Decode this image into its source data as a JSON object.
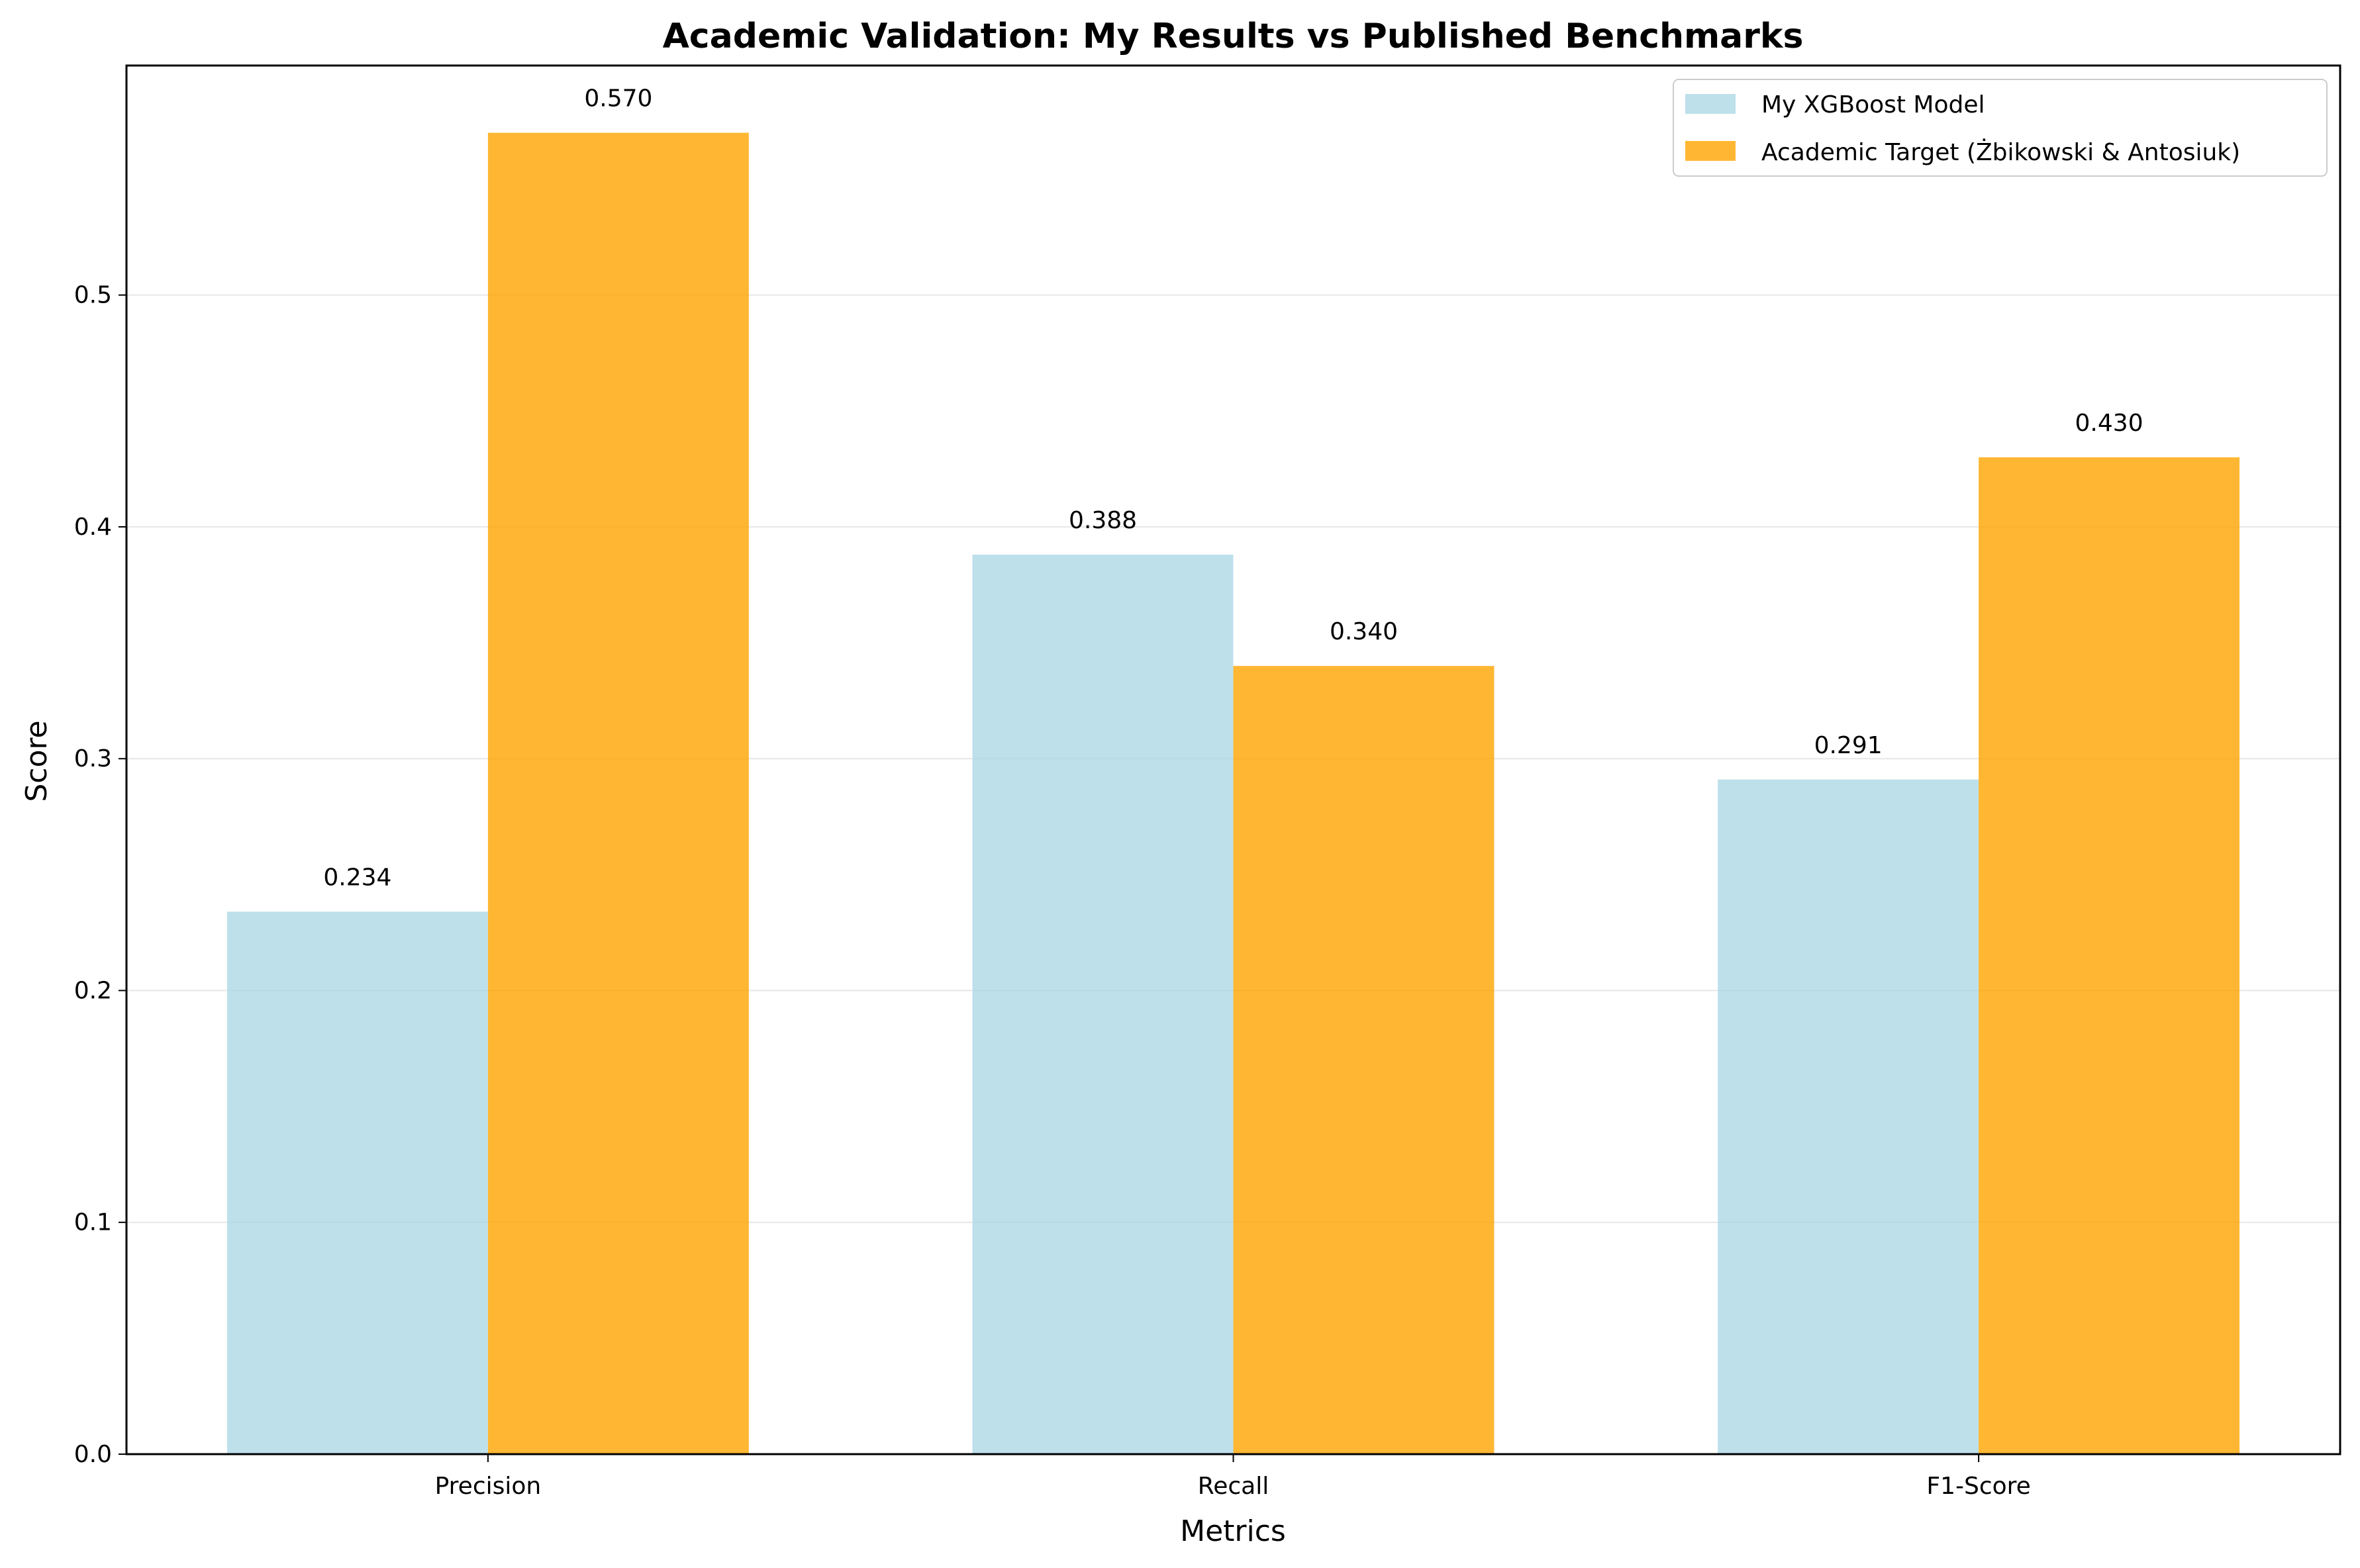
{
  "chart_data": {
    "type": "bar",
    "title": "Academic Validation: My Results vs Published Benchmarks",
    "xlabel": "Metrics",
    "ylabel": "Score",
    "categories": [
      "Precision",
      "Recall",
      "F1-Score"
    ],
    "series": [
      {
        "name": "My XGBoost Model",
        "values": [
          0.234,
          0.388,
          0.291
        ],
        "labels": [
          "0.234",
          "0.388",
          "0.291"
        ],
        "color": "#add8e6"
      },
      {
        "name": "Academic Target (Żbikowski & Antosiuk)",
        "values": [
          0.57,
          0.34,
          0.43
        ],
        "labels": [
          "0.570",
          "0.340",
          "0.430"
        ],
        "color": "#ffa500"
      }
    ],
    "ylim": [
      0,
      0.599
    ],
    "yticks": [
      0.0,
      0.1,
      0.2,
      0.3,
      0.4,
      0.5
    ],
    "ytick_labels": [
      "0.0",
      "0.1",
      "0.2",
      "0.3",
      "0.4",
      "0.5"
    ],
    "grid": "y",
    "legend_position": "top-right",
    "bar_opacity": 0.8
  }
}
